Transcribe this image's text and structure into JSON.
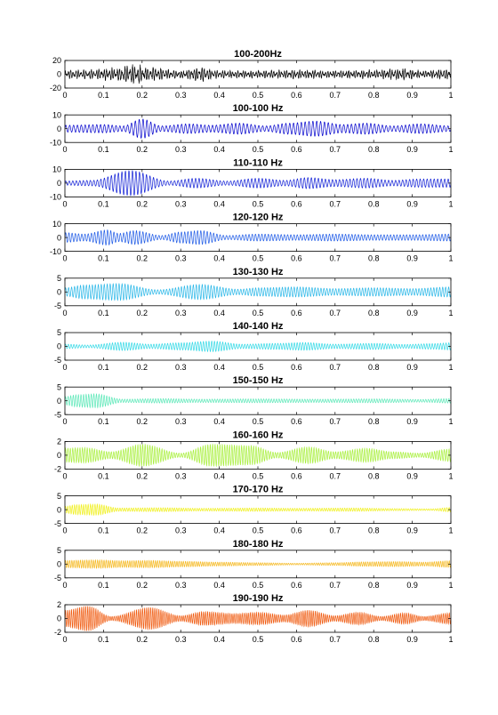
{
  "chart_data": [
    {
      "type": "line",
      "title": "100-200Hz",
      "color": "#000000",
      "xlim": [
        0,
        1
      ],
      "ylim": [
        -20,
        20
      ],
      "x_ticks": [
        "0",
        "0.1",
        "0.2",
        "0.3",
        "0.4",
        "0.5",
        "0.6",
        "0.7",
        "0.8",
        "0.9",
        "1"
      ],
      "y_ticks": [
        "20",
        "0",
        "-20"
      ],
      "envelope": {
        "t": [
          0,
          0.08,
          0.12,
          0.18,
          0.22,
          0.3,
          0.35,
          0.4,
          0.5,
          0.55,
          0.62,
          0.7,
          0.8,
          0.87,
          0.93,
          1.0
        ],
        "amp": [
          7,
          8,
          10,
          15,
          11,
          6,
          12,
          6,
          6,
          7,
          7,
          6,
          7,
          9,
          6,
          9
        ]
      },
      "carrier_cycles": 150,
      "waveform": "noise"
    },
    {
      "type": "line",
      "title": "100-100 Hz",
      "color": "#0000cc",
      "xlim": [
        0,
        1
      ],
      "ylim": [
        -10,
        10
      ],
      "x_ticks": [
        "0",
        "0.1",
        "0.2",
        "0.3",
        "0.4",
        "0.5",
        "0.6",
        "0.7",
        "0.8",
        "0.9",
        "1"
      ],
      "y_ticks": [
        "10",
        "0",
        "-10"
      ],
      "envelope": {
        "t": [
          0,
          0.1,
          0.15,
          0.2,
          0.25,
          0.32,
          0.38,
          0.45,
          0.52,
          0.58,
          0.65,
          0.72,
          0.78,
          0.85,
          0.92,
          1.0
        ],
        "amp": [
          2.5,
          3,
          2,
          7,
          2,
          3.5,
          2.5,
          4,
          2,
          4,
          5.5,
          3,
          4,
          2,
          3.5,
          2
        ]
      },
      "carrier_cycles": 100,
      "waveform": "sine"
    },
    {
      "type": "line",
      "title": "110-110 Hz",
      "color": "#0f1ed6",
      "xlim": [
        0,
        1
      ],
      "ylim": [
        -10,
        10
      ],
      "x_ticks": [
        "0",
        "0.1",
        "0.2",
        "0.3",
        "0.4",
        "0.5",
        "0.6",
        "0.7",
        "0.8",
        "0.9",
        "1"
      ],
      "y_ticks": [
        "10",
        "0",
        "-10"
      ],
      "envelope": {
        "t": [
          0,
          0.07,
          0.17,
          0.27,
          0.34,
          0.42,
          0.5,
          0.57,
          0.63,
          0.7,
          0.78,
          0.85,
          0.92,
          1.0
        ],
        "amp": [
          1.5,
          2,
          9,
          1.5,
          3.5,
          1.5,
          3.5,
          2,
          4,
          2.5,
          3.5,
          2,
          3,
          3
        ]
      },
      "carrier_cycles": 110,
      "waveform": "sine"
    },
    {
      "type": "line",
      "title": "120-120 Hz",
      "color": "#1e5ae6",
      "xlim": [
        0,
        1
      ],
      "ylim": [
        -10,
        10
      ],
      "x_ticks": [
        "0",
        "0.1",
        "0.2",
        "0.3",
        "0.4",
        "0.5",
        "0.6",
        "0.7",
        "0.8",
        "0.9",
        "1"
      ],
      "y_ticks": [
        "10",
        "0",
        "-10"
      ],
      "envelope": {
        "t": [
          0,
          0.05,
          0.11,
          0.14,
          0.18,
          0.25,
          0.3,
          0.35,
          0.42,
          0.5,
          0.6,
          0.7,
          0.8,
          0.9,
          1.0
        ],
        "amp": [
          3.5,
          2.5,
          5.5,
          3,
          5,
          1.5,
          4,
          5,
          1.5,
          2.5,
          2,
          2.5,
          2,
          2,
          2.5
        ]
      },
      "carrier_cycles": 120,
      "waveform": "sine"
    },
    {
      "type": "line",
      "title": "130-130 Hz",
      "color": "#29b7e8",
      "xlim": [
        0,
        1
      ],
      "ylim": [
        -5,
        5
      ],
      "x_ticks": [
        "0",
        "0.1",
        "0.2",
        "0.3",
        "0.4",
        "0.5",
        "0.6",
        "0.7",
        "0.8",
        "0.9",
        "1"
      ],
      "y_ticks": [
        "5",
        "0",
        "-5"
      ],
      "envelope": {
        "t": [
          0,
          0.05,
          0.14,
          0.24,
          0.35,
          0.45,
          0.5,
          0.6,
          0.7,
          0.8,
          0.9,
          1.0
        ],
        "amp": [
          1.5,
          2.5,
          3,
          0.8,
          2.7,
          1,
          1.5,
          1.8,
          1.2,
          1.5,
          1.2,
          1.8
        ]
      },
      "carrier_cycles": 130,
      "waveform": "sine"
    },
    {
      "type": "line",
      "title": "140-140 Hz",
      "color": "#33d9e6",
      "xlim": [
        0,
        1
      ],
      "ylim": [
        -5,
        5
      ],
      "x_ticks": [
        "0",
        "0.1",
        "0.2",
        "0.3",
        "0.4",
        "0.5",
        "0.6",
        "0.7",
        "0.8",
        "0.9",
        "1"
      ],
      "y_ticks": [
        "5",
        "0",
        "-5"
      ],
      "envelope": {
        "t": [
          0,
          0.06,
          0.15,
          0.22,
          0.3,
          0.38,
          0.46,
          0.55,
          0.62,
          0.7,
          0.8,
          0.88,
          0.95,
          1.0
        ],
        "amp": [
          0.8,
          0.5,
          1.5,
          0.8,
          1.3,
          1.9,
          0.8,
          1.1,
          1.4,
          0.8,
          1.1,
          0.7,
          1.0,
          1.3
        ]
      },
      "carrier_cycles": 140,
      "waveform": "sine"
    },
    {
      "type": "line",
      "title": "150-150 Hz",
      "color": "#5ce8b8",
      "xlim": [
        0,
        1
      ],
      "ylim": [
        -5,
        5
      ],
      "x_ticks": [
        "0",
        "0.1",
        "0.2",
        "0.3",
        "0.4",
        "0.5",
        "0.6",
        "0.7",
        "0.8",
        "0.9",
        "1"
      ],
      "y_ticks": [
        "5",
        "0",
        "-5"
      ],
      "envelope": {
        "t": [
          0,
          0.03,
          0.08,
          0.15,
          0.25,
          0.35,
          0.5,
          0.65,
          0.8,
          0.92,
          1.0
        ],
        "amp": [
          1.5,
          2.2,
          2.5,
          0.6,
          0.8,
          0.6,
          0.7,
          0.6,
          0.7,
          0.5,
          0.8
        ]
      },
      "carrier_cycles": 150,
      "waveform": "sine"
    },
    {
      "type": "line",
      "title": "160-160 Hz",
      "color": "#a8ef3c",
      "xlim": [
        0,
        1
      ],
      "ylim": [
        -2,
        2
      ],
      "x_ticks": [
        "0",
        "0.1",
        "0.2",
        "0.3",
        "0.4",
        "0.5",
        "0.6",
        "0.7",
        "0.8",
        "0.9",
        "1"
      ],
      "y_ticks": [
        "2",
        "0",
        "-2"
      ],
      "envelope": {
        "t": [
          0,
          0.05,
          0.12,
          0.2,
          0.3,
          0.38,
          0.48,
          0.55,
          0.63,
          0.7,
          0.78,
          0.85,
          0.92,
          1.0
        ],
        "amp": [
          1,
          1.1,
          0.5,
          1.6,
          0.3,
          1.6,
          1.4,
          0.4,
          1.2,
          0.5,
          1.0,
          0.5,
          0.3,
          0.9
        ]
      },
      "carrier_cycles": 160,
      "waveform": "sine"
    },
    {
      "type": "line",
      "title": "170-170 Hz",
      "color": "#f0f01e",
      "xlim": [
        0,
        1
      ],
      "ylim": [
        -5,
        5
      ],
      "x_ticks": [
        "0",
        "0.1",
        "0.2",
        "0.3",
        "0.4",
        "0.5",
        "0.6",
        "0.7",
        "0.8",
        "0.9",
        "1"
      ],
      "y_ticks": [
        "5",
        "0",
        "-5"
      ],
      "envelope": {
        "t": [
          0,
          0.03,
          0.08,
          0.14,
          0.25,
          0.35,
          0.5,
          0.6,
          0.75,
          0.85,
          0.95,
          1.0
        ],
        "amp": [
          1.2,
          1.8,
          2.0,
          0.6,
          0.7,
          0.5,
          0.6,
          0.5,
          0.6,
          0.4,
          0.3,
          0.8
        ]
      },
      "carrier_cycles": 170,
      "waveform": "sine"
    },
    {
      "type": "line",
      "title": "180-180 Hz",
      "color": "#f5b81e",
      "xlim": [
        0,
        1
      ],
      "ylim": [
        -5,
        5
      ],
      "x_ticks": [
        "0",
        "0.1",
        "0.2",
        "0.3",
        "0.4",
        "0.5",
        "0.6",
        "0.7",
        "0.8",
        "0.9",
        "1"
      ],
      "y_ticks": [
        "5",
        "0",
        "-5"
      ],
      "envelope": {
        "t": [
          0,
          0.08,
          0.15,
          0.22,
          0.3,
          0.4,
          0.5,
          0.6,
          0.7,
          0.78,
          0.86,
          0.93,
          1.0
        ],
        "amp": [
          1.3,
          1.5,
          1.2,
          1.3,
          1.0,
          0.7,
          0.5,
          0.3,
          0.5,
          0.8,
          0.9,
          0.7,
          1.2
        ]
      },
      "carrier_cycles": 180,
      "waveform": "sine"
    },
    {
      "type": "line",
      "title": "190-190 Hz",
      "color": "#f05a0f",
      "xlim": [
        0,
        1
      ],
      "ylim": [
        -2,
        2
      ],
      "x_ticks": [
        "0",
        "0.1",
        "0.2",
        "0.3",
        "0.4",
        "0.5",
        "0.6",
        "0.7",
        "0.8",
        "0.9",
        "1"
      ],
      "y_ticks": [
        "2",
        "0",
        "-2"
      ],
      "envelope": {
        "t": [
          0,
          0.06,
          0.12,
          0.22,
          0.3,
          0.36,
          0.44,
          0.5,
          0.57,
          0.63,
          0.7,
          0.76,
          0.82,
          0.88,
          0.93,
          1.0
        ],
        "amp": [
          1.2,
          1.8,
          0.3,
          1.6,
          0.4,
          1.0,
          0.7,
          0.9,
          0.5,
          1.2,
          0.4,
          0.9,
          0.3,
          0.8,
          0.3,
          0.8
        ]
      },
      "carrier_cycles": 190,
      "waveform": "sine"
    }
  ]
}
